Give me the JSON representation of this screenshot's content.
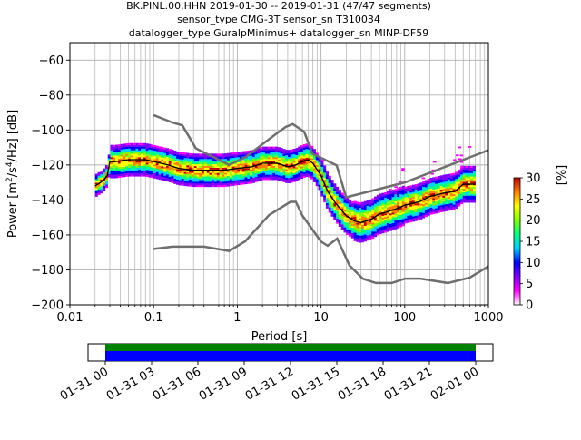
{
  "chart_data": {
    "type": "heatmap",
    "title_lines": [
      "BK.PINL.00.HHN   2019-01-30 -- 2019-01-31  (47/47 segments)",
      "sensor_type CMG-3T sensor_sn T310034",
      "datalogger_type GuralpMinimus+ datalogger_sn MINP-DF59"
    ],
    "xlabel": "Period [s]",
    "ylabel_parts": [
      "Power [m",
      "2",
      "/s",
      "4",
      "/Hz] [dB]"
    ],
    "xscale": "log",
    "xlim": [
      0.01,
      1000
    ],
    "ylim": [
      -200,
      -50
    ],
    "xticks": [
      {
        "value": 0.01,
        "label": "0.01"
      },
      {
        "value": 0.1,
        "label": "0.1"
      },
      {
        "value": 1,
        "label": "1"
      },
      {
        "value": 10,
        "label": "10"
      },
      {
        "value": 100,
        "label": "100"
      },
      {
        "value": 1000,
        "label": "1000"
      }
    ],
    "yticks": [
      {
        "value": -60,
        "label": "−60"
      },
      {
        "value": -80,
        "label": "−80"
      },
      {
        "value": -100,
        "label": "−100"
      },
      {
        "value": -120,
        "label": "−120"
      },
      {
        "value": -140,
        "label": "−140"
      },
      {
        "value": -160,
        "label": "−160"
      },
      {
        "value": -180,
        "label": "−180"
      },
      {
        "value": -200,
        "label": "−200"
      }
    ],
    "grid": true,
    "colorbar": {
      "label": "[%]",
      "range": [
        0,
        30
      ],
      "ticks": [
        {
          "value": 0,
          "label": "0"
        },
        {
          "value": 5,
          "label": "5"
        },
        {
          "value": 10,
          "label": "10"
        },
        {
          "value": 15,
          "label": "15"
        },
        {
          "value": 20,
          "label": "20"
        },
        {
          "value": 25,
          "label": "25"
        },
        {
          "value": 30,
          "label": "30"
        }
      ],
      "colors": [
        "#ffffff",
        "#ff00ff",
        "#7f00ff",
        "#0000ff",
        "#00d0ff",
        "#00ff80",
        "#80ff00",
        "#ffff00",
        "#ff8000",
        "#c00000"
      ]
    },
    "noise_models": [
      {
        "x": [
          0.1,
          0.17,
          0.22,
          0.32,
          0.8,
          1.25,
          3.0,
          3.8,
          4.6,
          6.3,
          7.9,
          15.4,
          20,
          100,
          1000
        ],
        "y": [
          -91.5,
          -95.8,
          -97.3,
          -110.5,
          -120.0,
          -115.5,
          -101.7,
          -98.2,
          -96.6,
          -101.0,
          -113.5,
          -120.3,
          -138.5,
          -130.0,
          -111.5
        ]
      },
      {
        "x": [
          0.1,
          0.17,
          0.4,
          0.8,
          1.24,
          2.4,
          4.3,
          5.0,
          6.0,
          10,
          12,
          15.6,
          21.9,
          31.6,
          45,
          70,
          101,
          154,
          328,
          600,
          1000
        ],
        "y": [
          -168.0,
          -166.7,
          -166.7,
          -169.2,
          -163.7,
          -148.6,
          -141.1,
          -141.1,
          -149.0,
          -163.8,
          -166.2,
          -162.1,
          -177.5,
          -185.0,
          -187.5,
          -187.5,
          -185.0,
          -185.0,
          -187.5,
          -184.4,
          -178.0
        ]
      }
    ],
    "mode_curve": {
      "x": [
        0.02,
        0.025,
        0.028,
        0.03,
        0.035,
        0.05,
        0.08,
        0.1,
        0.15,
        0.2,
        0.3,
        0.5,
        0.7,
        1,
        1.5,
        2,
        3,
        4,
        5,
        6,
        7,
        8,
        10,
        12,
        15,
        20,
        25,
        30,
        40,
        50,
        60,
        80,
        100,
        150,
        200,
        300,
        400,
        500,
        700
      ],
      "y": [
        -132,
        -129,
        -126,
        -118,
        -118,
        -117,
        -117,
        -118,
        -120,
        -122,
        -123,
        -123,
        -123,
        -122,
        -121,
        -119,
        -119,
        -121,
        -120,
        -118,
        -117,
        -119,
        -126,
        -135,
        -142,
        -149,
        -152,
        -153,
        -151,
        -148,
        -147,
        -145,
        -143,
        -141,
        -138,
        -136,
        -135,
        -131,
        -131
      ]
    },
    "timeline": {
      "tick_labels": [
        "01-31 00",
        "01-31 03",
        "01-31 06",
        "01-31 09",
        "01-31 12",
        "01-31 15",
        "01-31 18",
        "01-31 21",
        "02-01 00"
      ],
      "bar_colors": [
        "#008000",
        "#0000ff"
      ]
    }
  }
}
